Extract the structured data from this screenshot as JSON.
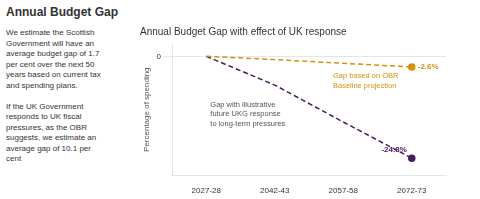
{
  "title": "Annual Budget Gap",
  "panel_text": [
    [
      "We estimate the Scottish",
      "Government will have an",
      "average budget gap of 1.7",
      "per cent over the next 50",
      "years based on current tax",
      "and spending plans."
    ],
    [
      "If the UK Government",
      "responds to UK fiscal",
      "pressures, as the OBR",
      "suggests, we estimate an",
      "average gap of 10.1 per",
      "cent"
    ]
  ],
  "chart_data": {
    "type": "line",
    "title": "Annual Budget Gap with effect of UK response",
    "y_label": "Percentage of spending",
    "categories": [
      "2027-28",
      "2042-43",
      "2057-58",
      "2072-73"
    ],
    "series": [
      {
        "color": "#d4910a",
        "line_style": "dashed",
        "values": [
          0,
          -0.8,
          -1.7,
          -2.6
        ],
        "value_labels": [
          null,
          null,
          null,
          "-2.6%"
        ]
      },
      {
        "color": "#4a1a5e",
        "line_style": "dashed",
        "values": [
          0,
          -7,
          -16,
          -24.8
        ],
        "value_labels": [
          null,
          null,
          null,
          "-24.8%"
        ]
      }
    ],
    "annotations": [
      "Gap based on OBR\nBaseline projection",
      "Gap with illustrative\nfuture UKG response\nto long-term pressures"
    ],
    "ylim": [
      -29,
      3
    ],
    "yticks": [
      0
    ],
    "grid": true
  }
}
